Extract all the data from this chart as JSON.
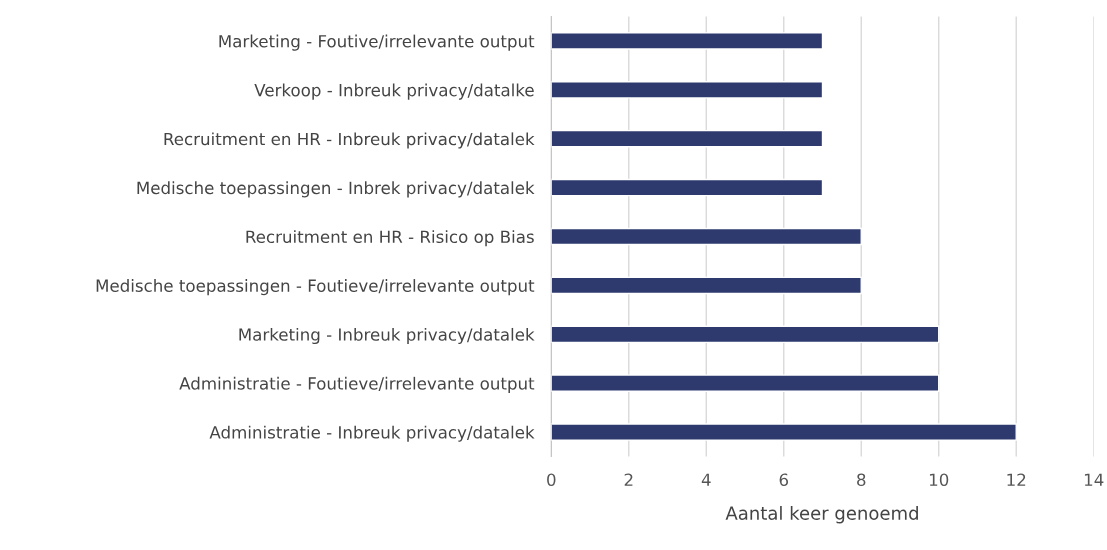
{
  "chart_data": {
    "type": "bar",
    "orientation": "horizontal",
    "xlabel": "Aantal keer genoemd",
    "categories": [
      "Marketing - Foutive/irrelevante output",
      "Verkoop - Inbreuk privacy/datalke",
      "Recruitment en HR - Inbreuk privacy/datalek",
      "Medische toepassingen - Inbrek privacy/datalek",
      "Recruitment en HR - Risico op Bias",
      "Medische toepassingen - Foutieve/irrelevante output",
      "Marketing - Inbreuk privacy/datalek",
      "Administratie - Foutieve/irrelevante output",
      "Administratie - Inbreuk privacy/datalek"
    ],
    "values": [
      7,
      7,
      7,
      7,
      8,
      8,
      10,
      10,
      12
    ],
    "color": "#2e3a6e",
    "xlim": [
      0,
      14
    ],
    "xticks": [
      0,
      2,
      4,
      6,
      8,
      10,
      12,
      14
    ],
    "grid": "x"
  }
}
